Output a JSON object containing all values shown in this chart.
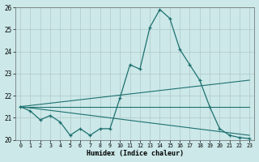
{
  "xlabel": "Humidex (Indice chaleur)",
  "background_color": "#cce8e8",
  "grid_color": "#b0c8c8",
  "line_color": "#1e7070",
  "xlim": [
    -0.5,
    23.5
  ],
  "ylim": [
    20,
    26
  ],
  "yticks": [
    20,
    21,
    22,
    23,
    24,
    25,
    26
  ],
  "xticks": [
    0,
    1,
    2,
    3,
    4,
    5,
    6,
    7,
    8,
    9,
    10,
    11,
    12,
    13,
    14,
    15,
    16,
    17,
    18,
    19,
    20,
    21,
    22,
    23
  ],
  "line_main": {
    "x": [
      0,
      1,
      2,
      3,
      4,
      5,
      6,
      7,
      8,
      9,
      10,
      11,
      12,
      13,
      14,
      15,
      16,
      17,
      18,
      19,
      20,
      21,
      22,
      23
    ],
    "y": [
      21.5,
      21.3,
      20.9,
      21.1,
      20.8,
      20.2,
      20.5,
      20.2,
      20.5,
      20.5,
      21.9,
      23.4,
      23.2,
      25.1,
      25.9,
      25.5,
      24.1,
      23.4,
      22.7,
      21.5,
      20.5,
      20.2,
      20.1,
      20.05
    ]
  },
  "line_flat": {
    "x": [
      0,
      23
    ],
    "y": [
      21.5,
      21.5
    ]
  },
  "line_rising": {
    "x": [
      0,
      23
    ],
    "y": [
      21.5,
      22.7
    ]
  },
  "line_falling": {
    "x": [
      0,
      23
    ],
    "y": [
      21.5,
      20.2
    ]
  }
}
